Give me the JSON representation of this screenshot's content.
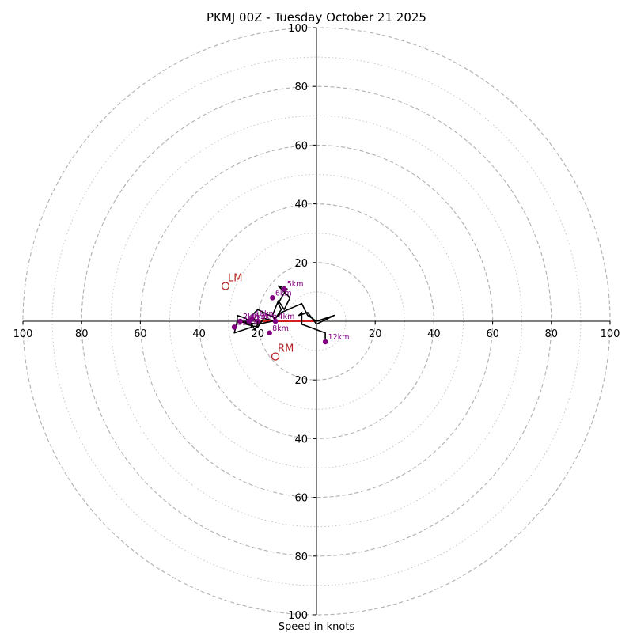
{
  "chart_data": {
    "type": "hodograph",
    "title": "PKMJ 00Z - Tuesday October 21 2025",
    "xlabel": "Speed in knots",
    "range_kt": [
      -100,
      100
    ],
    "ring_major_kt": [
      20,
      40,
      60,
      80,
      100
    ],
    "ring_minor_kt": [
      10,
      30,
      50,
      70,
      90
    ],
    "tick_labels_x": [
      {
        "value": -100,
        "label": "100"
      },
      {
        "value": -80,
        "label": "80"
      },
      {
        "value": -60,
        "label": "60"
      },
      {
        "value": -40,
        "label": "40"
      },
      {
        "value": -20,
        "label": "20"
      },
      {
        "value": 20,
        "label": "20"
      },
      {
        "value": 40,
        "label": "40"
      },
      {
        "value": 60,
        "label": "60"
      },
      {
        "value": 80,
        "label": "80"
      },
      {
        "value": 100,
        "label": "100"
      }
    ],
    "tick_labels_y": [
      {
        "value": 100,
        "label": "100"
      },
      {
        "value": 80,
        "label": "80"
      },
      {
        "value": 60,
        "label": "60"
      },
      {
        "value": 40,
        "label": "40"
      },
      {
        "value": 20,
        "label": "20"
      },
      {
        "value": -20,
        "label": "20"
      },
      {
        "value": -40,
        "label": "40"
      },
      {
        "value": -60,
        "label": "60"
      },
      {
        "value": -80,
        "label": "80"
      },
      {
        "value": -100,
        "label": "100"
      }
    ],
    "series": [
      {
        "name": "wind profile",
        "color": "#000000",
        "u_kt": [
          -28,
          -27,
          -27,
          -24,
          -22,
          -28,
          -27,
          -22,
          -21,
          -20,
          -22,
          -20,
          -16,
          -14,
          -12,
          -13,
          -12,
          -10,
          -13,
          -9,
          -11,
          -13,
          -15,
          -14,
          -18,
          -20,
          -24,
          -23,
          -27,
          -20,
          -15,
          -12,
          -5,
          -3,
          0,
          6,
          0,
          -3,
          -6,
          -5,
          -5,
          3,
          3
        ],
        "v_kt": [
          -2,
          -1,
          2,
          1,
          -2,
          -4,
          0,
          -1,
          -3,
          -1,
          2,
          4,
          2,
          1,
          4,
          6,
          8,
          11,
          12,
          8,
          4,
          7,
          2,
          0,
          1,
          -2,
          -1,
          0,
          0,
          -1,
          0,
          3,
          6,
          2,
          0,
          2,
          -1,
          3,
          2,
          3,
          -1,
          -4,
          -7
        ]
      }
    ],
    "height_markers": [
      {
        "label": "2km",
        "u": -26,
        "v": 0
      },
      {
        "label": "3km",
        "u": -20,
        "v": 0
      },
      {
        "label": "4km",
        "u": -14,
        "v": 0
      },
      {
        "label": "5km",
        "u": -11,
        "v": 11
      },
      {
        "label": "6km",
        "u": -15,
        "v": 8
      },
      {
        "label": "8km",
        "u": -16,
        "v": -4
      },
      {
        "label": "9km",
        "u": -23,
        "v": 0
      },
      {
        "label": "10km",
        "u": -22,
        "v": 1
      },
      {
        "label": "11km",
        "u": -28,
        "v": -2
      },
      {
        "label": "12km",
        "u": 3,
        "v": -7
      }
    ],
    "storm_motion": [
      {
        "label": "LM",
        "u": -31,
        "v": 12
      },
      {
        "label": "RM",
        "u": -14,
        "v": -12
      }
    ],
    "mean_wind_vector": {
      "u_from": -20,
      "v_from": 0,
      "u_to": 0,
      "v_to": 0,
      "color": "#cc0000"
    },
    "colors": {
      "trace": "#000000",
      "marker": "#800080",
      "storm": "#b22222",
      "grid": "#b0b0b0",
      "axis": "#000000"
    }
  }
}
